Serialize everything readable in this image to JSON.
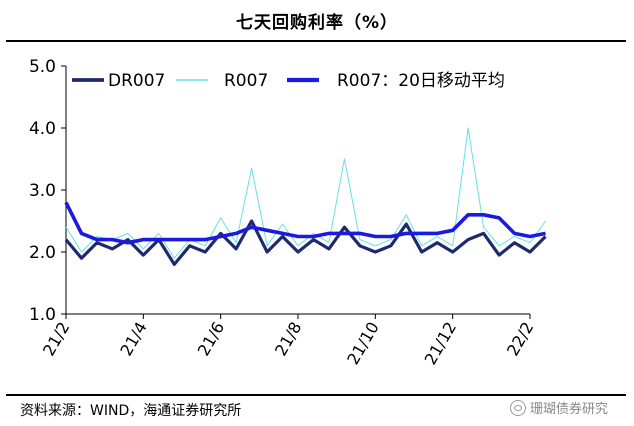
{
  "title": "七天回购利率（%）",
  "source": "资料来源：WIND，海通证券研究所",
  "watermark": "珊瑚债券研究",
  "colors": {
    "DR007": "#1f2a6e",
    "R007": "#66e0e6",
    "R007_MA20": "#1a1ae0"
  },
  "chart_data": {
    "type": "line",
    "title": "七天回购利率（%）",
    "x_ticks": [
      "21/2",
      "21/4",
      "21/6",
      "21/8",
      "21/10",
      "21/12",
      "22/2"
    ],
    "ylim": [
      1.0,
      5.0
    ],
    "y_ticks": [
      "1.0",
      "2.0",
      "3.0",
      "4.0",
      "5.0"
    ],
    "legend": {
      "placement": "top"
    },
    "series": [
      {
        "name": "DR007",
        "x": [
          0,
          0.2,
          0.4,
          0.6,
          0.8,
          1,
          1.2,
          1.4,
          1.6,
          1.8,
          2,
          2.2,
          2.4,
          2.6,
          2.8,
          3,
          3.2,
          3.4,
          3.6,
          3.8,
          4,
          4.2,
          4.4,
          4.6,
          4.8,
          5,
          5.2,
          5.4,
          5.6,
          5.8,
          6,
          6.2
        ],
        "values": [
          2.2,
          1.9,
          2.15,
          2.05,
          2.2,
          1.95,
          2.2,
          1.8,
          2.1,
          2.0,
          2.3,
          2.05,
          2.5,
          2.0,
          2.25,
          2.0,
          2.2,
          2.05,
          2.4,
          2.1,
          2.0,
          2.1,
          2.45,
          2.0,
          2.15,
          2.0,
          2.2,
          2.3,
          1.95,
          2.15,
          2.0,
          2.25
        ]
      },
      {
        "name": "R007",
        "x": [
          0,
          0.2,
          0.4,
          0.6,
          0.8,
          1,
          1.2,
          1.4,
          1.6,
          1.8,
          2,
          2.2,
          2.4,
          2.6,
          2.8,
          3,
          3.2,
          3.4,
          3.6,
          3.8,
          4,
          4.2,
          4.4,
          4.6,
          4.8,
          5,
          5.2,
          5.4,
          5.6,
          5.8,
          6,
          6.2
        ],
        "values": [
          2.4,
          2.0,
          2.25,
          2.2,
          2.3,
          2.05,
          2.3,
          1.9,
          2.2,
          2.1,
          2.55,
          2.15,
          3.35,
          2.1,
          2.45,
          2.1,
          2.3,
          2.15,
          3.5,
          2.2,
          2.1,
          2.2,
          2.6,
          2.1,
          2.25,
          2.1,
          4.0,
          2.4,
          2.1,
          2.25,
          2.15,
          2.5
        ]
      },
      {
        "name": "R007：20日移动平均",
        "x": [
          0,
          0.2,
          0.4,
          0.6,
          0.8,
          1,
          1.2,
          1.4,
          1.6,
          1.8,
          2,
          2.2,
          2.4,
          2.6,
          2.8,
          3,
          3.2,
          3.4,
          3.6,
          3.8,
          4,
          4.2,
          4.4,
          4.6,
          4.8,
          5,
          5.2,
          5.4,
          5.6,
          5.8,
          6,
          6.2
        ],
        "values": [
          2.8,
          2.3,
          2.2,
          2.2,
          2.15,
          2.2,
          2.2,
          2.2,
          2.2,
          2.2,
          2.25,
          2.3,
          2.4,
          2.35,
          2.3,
          2.25,
          2.25,
          2.3,
          2.3,
          2.3,
          2.25,
          2.25,
          2.3,
          2.3,
          2.3,
          2.35,
          2.6,
          2.6,
          2.55,
          2.3,
          2.25,
          2.3
        ]
      }
    ]
  }
}
